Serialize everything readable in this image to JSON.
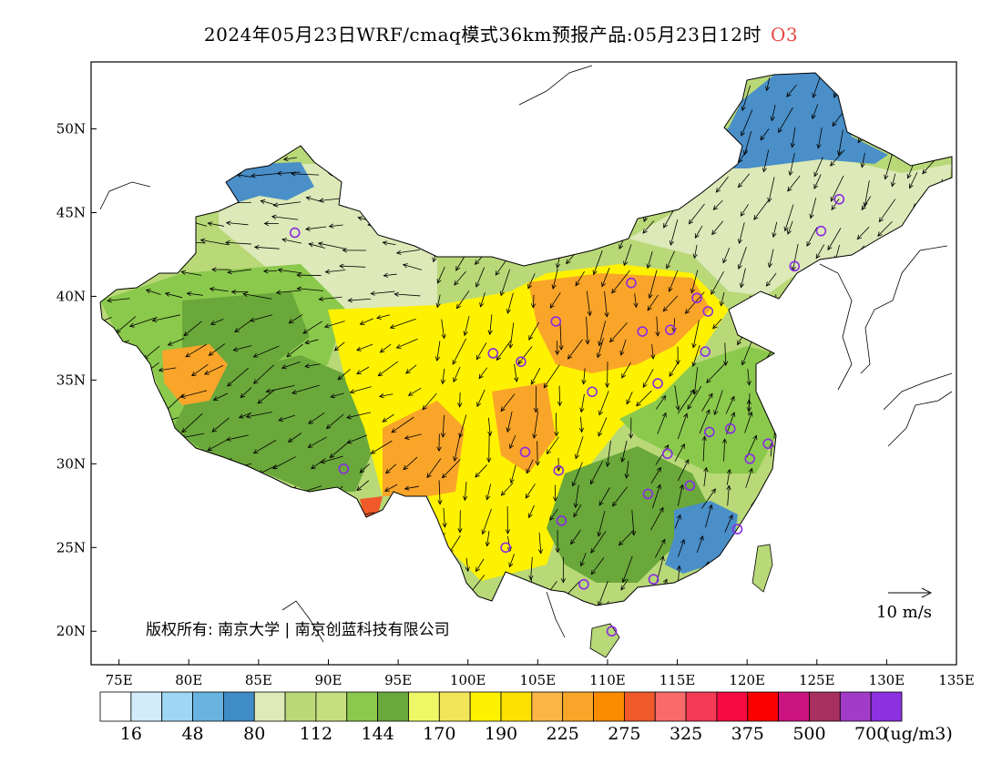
{
  "title": {
    "text": "2024年05月23日WRF/cmaq模式36km预报产品:05月23日12时",
    "pollutant": "O3",
    "pollutant_color": "#e8463e"
  },
  "axes": {
    "lat_labels": [
      "50N",
      "45N",
      "40N",
      "35N",
      "30N",
      "25N",
      "20N"
    ],
    "lat_values": [
      50,
      45,
      40,
      35,
      30,
      25,
      20
    ],
    "lon_labels": [
      "75E",
      "80E",
      "85E",
      "90E",
      "95E",
      "100E",
      "105E",
      "110E",
      "115E",
      "120E",
      "125E",
      "130E",
      "135E"
    ],
    "lon_values": [
      75,
      80,
      85,
      90,
      95,
      100,
      105,
      110,
      115,
      120,
      125,
      130,
      135
    ],
    "lon_range": [
      73,
      135
    ],
    "lat_range": [
      18,
      54
    ]
  },
  "copyright": "版权所有: 南京大学 | 南京创蓝科技有限公司",
  "wind_scale": {
    "label": "10 m/s"
  },
  "colorbar": {
    "unit": "(ug/m3)",
    "colors": [
      "#ffffff",
      "#d2ecfa",
      "#9fd6f3",
      "#69b3e0",
      "#3f8cc7",
      "#dfeabb",
      "#bcd97a",
      "#c4e07e",
      "#8bc94c",
      "#6aa83b",
      "#eef866",
      "#f2e559",
      "#fff200",
      "#fde100",
      "#fab545",
      "#f9a52a",
      "#fb8c00",
      "#f05a2a",
      "#fa6a6a",
      "#f53a56",
      "#f50a42",
      "#fa0000",
      "#cc1480",
      "#a83060",
      "#a23bc8",
      "#8c30e0"
    ],
    "labels": [
      "16",
      "48",
      "80",
      "112",
      "144",
      "170",
      "190",
      "225",
      "275",
      "325",
      "375",
      "500",
      "700"
    ]
  },
  "colors": {
    "low_blue": "#4a8fc8",
    "light_green": "#dde9b8",
    "mid_green": "#b9d878",
    "dark_green": "#6aa83b",
    "yellow": "#fff200",
    "orange": "#f9a52a",
    "red_orange": "#f05a2a",
    "station_marker": "#8a2be2"
  },
  "stations": [
    [
      87.6,
      43.8
    ],
    [
      91.1,
      29.7
    ],
    [
      101.8,
      36.6
    ],
    [
      103.8,
      36.1
    ],
    [
      106.3,
      38.5
    ],
    [
      111.7,
      40.8
    ],
    [
      112.5,
      37.9
    ],
    [
      114.5,
      38.0
    ],
    [
      116.4,
      39.9
    ],
    [
      117.2,
      39.1
    ],
    [
      117.0,
      36.7
    ],
    [
      113.6,
      34.8
    ],
    [
      108.9,
      34.3
    ],
    [
      104.1,
      30.7
    ],
    [
      106.5,
      29.6
    ],
    [
      106.7,
      26.6
    ],
    [
      102.7,
      25.0
    ],
    [
      108.3,
      22.8
    ],
    [
      110.3,
      20.0
    ],
    [
      113.3,
      23.1
    ],
    [
      114.3,
      30.6
    ],
    [
      112.9,
      28.2
    ],
    [
      115.9,
      28.7
    ],
    [
      117.3,
      31.9
    ],
    [
      118.8,
      32.1
    ],
    [
      120.2,
      30.3
    ],
    [
      121.5,
      31.2
    ],
    [
      119.3,
      26.1
    ],
    [
      123.4,
      41.8
    ],
    [
      125.3,
      43.9
    ],
    [
      126.6,
      45.8
    ]
  ]
}
